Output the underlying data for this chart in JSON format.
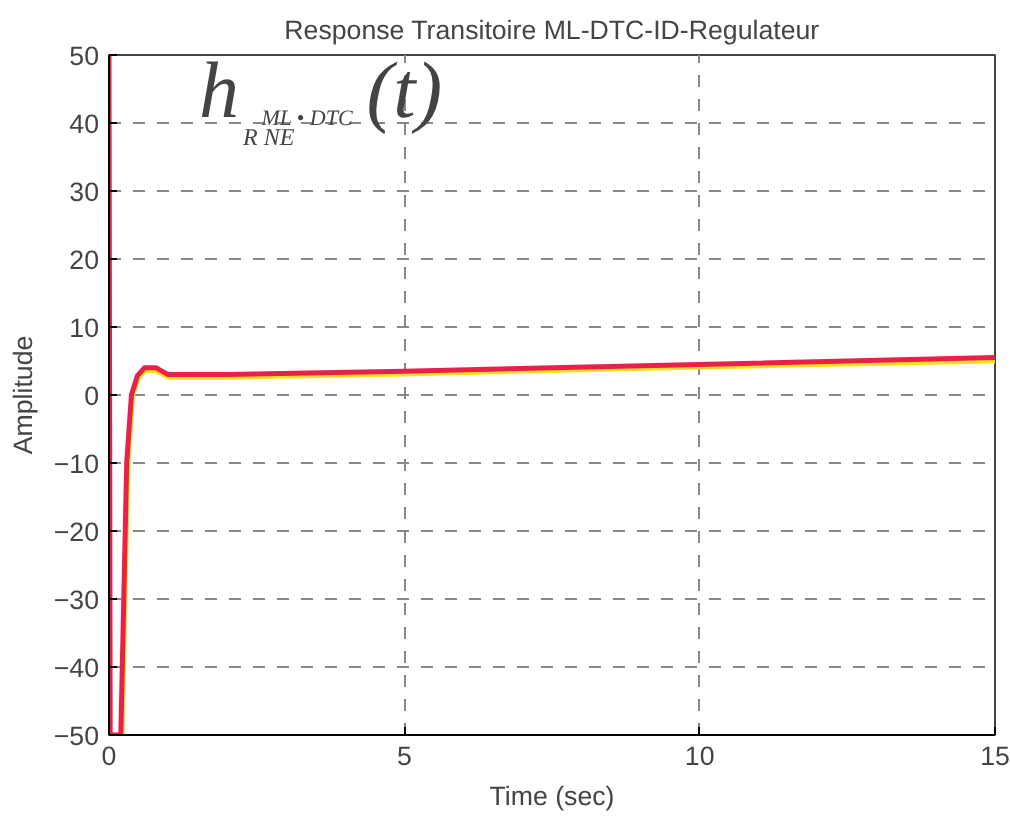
{
  "chart_data": {
    "type": "line",
    "title": "Response Transitoire ML-DTC-ID-Regulateur",
    "xlabel": "Time (sec)",
    "ylabel": "Amplitude",
    "xlim": [
      0,
      15
    ],
    "ylim": [
      -50,
      50
    ],
    "xticks": [
      0,
      5,
      10,
      15
    ],
    "yticks": [
      -50,
      -40,
      -30,
      -20,
      -10,
      0,
      10,
      20,
      30,
      40,
      50
    ],
    "grid": true,
    "annotations": [
      "h$_{R}$$^{ML}$$_{NE}$$^{• DTC}$(t)"
    ],
    "series": [
      {
        "color": "#ffe020",
        "x": [
          0.05,
          0.22,
          0.27,
          0.32,
          0.4,
          0.5,
          0.6,
          0.8,
          1.0,
          2,
          5,
          10,
          15
        ],
        "values": [
          -50,
          -50,
          -30,
          -10,
          0,
          2.5,
          3.6,
          3.6,
          2.6,
          2.6,
          3.1,
          4.1,
          5.0
        ]
      },
      {
        "color": "#e8204a",
        "x": [
          0,
          0.02,
          0.05,
          0.2,
          0.25,
          0.3,
          0.38,
          0.48,
          0.6,
          0.8,
          1.0,
          2,
          5,
          10,
          15
        ],
        "values": [
          50,
          -50,
          -50,
          -50,
          -30,
          -10,
          0,
          2.8,
          4.0,
          4.0,
          3.0,
          3.0,
          3.5,
          4.5,
          5.5
        ]
      }
    ]
  }
}
